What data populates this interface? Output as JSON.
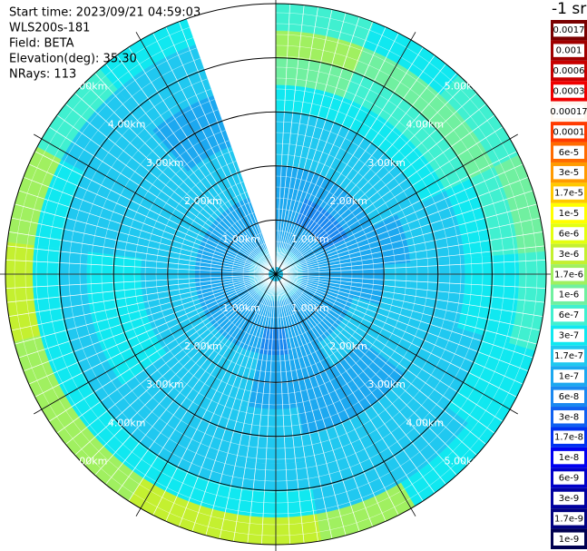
{
  "chart_data": {
    "type": "ppi",
    "header": [
      "Start time: 2023/09/21 04:59:03",
      "WLS200s-181",
      "Field: BETA",
      "Elevation(deg): 35.30",
      "NRays: 113"
    ],
    "range_lim": [
      0,
      5
    ],
    "range_ticks": [
      {
        "value": 1,
        "label": "1.00km"
      },
      {
        "value": 2,
        "label": "2.00km"
      },
      {
        "value": 3,
        "label": "3.00km"
      },
      {
        "value": 4,
        "label": "4.00km"
      },
      {
        "value": 5,
        "label": "5.00km"
      }
    ],
    "azimuth_lim": [
      0,
      340.7
    ],
    "values": [
      [
        1.7e-07,
        1e-07,
        1e-07,
        1e-07,
        1.7e-07,
        1.7e-07,
        3e-07,
        1e-06,
        1.7e-06,
        6e-07
      ],
      [
        1.7e-07,
        1e-07,
        6e-08,
        1e-07,
        1.7e-07,
        1.7e-07,
        3e-07,
        6e-07,
        1e-06,
        3e-07
      ],
      [
        1.7e-07,
        1e-07,
        6e-08,
        1e-07,
        1.7e-07,
        1.7e-07,
        3e-07,
        6e-07,
        1e-06,
        6e-07
      ],
      [
        1.7e-07,
        1e-07,
        1e-07,
        1e-07,
        1e-07,
        1.7e-07,
        1.7e-07,
        3e-07,
        6e-07,
        1e-06
      ],
      [
        1.7e-07,
        1e-07,
        1e-07,
        1e-07,
        1.7e-07,
        1.7e-07,
        1.7e-07,
        3e-07,
        3e-07,
        6e-07
      ],
      [
        1.7e-07,
        1e-07,
        1e-07,
        1.7e-07,
        1.7e-07,
        1.7e-07,
        1.7e-07,
        1.7e-07,
        3e-07,
        3e-07
      ],
      [
        1.7e-07,
        1e-07,
        1e-07,
        1.7e-07,
        1e-07,
        1e-07,
        1.7e-07,
        1.7e-07,
        1.7e-07,
        3e-07
      ],
      [
        1.7e-07,
        1e-07,
        1e-07,
        1e-07,
        1e-07,
        1e-07,
        1.7e-07,
        1.7e-07,
        1.7e-07,
        1.7e-06
      ],
      [
        1.7e-07,
        1e-07,
        6e-08,
        1e-07,
        1e-07,
        1.7e-07,
        1.7e-07,
        1.7e-07,
        3e-07,
        3e-06
      ],
      [
        1.7e-07,
        1e-07,
        1e-07,
        1.7e-07,
        1.7e-07,
        1.7e-07,
        1.7e-07,
        1.7e-07,
        3e-07,
        3e-06
      ],
      [
        1.7e-07,
        1e-07,
        1e-07,
        1.7e-07,
        1.7e-07,
        1.7e-07,
        1.7e-07,
        1.7e-07,
        3e-07,
        1.7e-06
      ],
      [
        1.7e-07,
        1e-07,
        1e-07,
        1.7e-07,
        1.7e-07,
        3e-07,
        3e-07,
        1.7e-07,
        3e-07,
        1.7e-06
      ],
      [
        1.7e-07,
        1e-07,
        1e-07,
        1.7e-07,
        1.7e-07,
        3e-07,
        3e-07,
        1.7e-07,
        3e-07,
        3e-06
      ],
      [
        1.7e-07,
        1e-07,
        1e-07,
        1.7e-07,
        1.7e-07,
        1.7e-07,
        1.7e-07,
        1.7e-07,
        3e-07,
        1.7e-06
      ],
      [
        1.7e-07,
        1e-07,
        1e-07,
        1.7e-07,
        1.7e-07,
        1.7e-07,
        1.7e-07,
        1.7e-07,
        1.7e-07,
        6e-07
      ],
      [
        1.7e-07,
        1e-07,
        1e-07,
        1.7e-07,
        1.7e-07,
        1e-07,
        1e-07,
        1.7e-07,
        1.7e-07,
        3e-07
      ]
    ],
    "colorbar": {
      "title": "-1 sr",
      "levels": [
        0.0017,
        0.001,
        0.0006,
        0.0003,
        0.00017,
        0.0001,
        {
          "value": 6e-05,
          "label": "6e-5"
        },
        {
          "value": 3e-05,
          "label": "3e-5"
        },
        {
          "value": 1.7e-05,
          "label": "1.7e-5"
        },
        {
          "value": 1e-05,
          "label": "1e-5"
        },
        {
          "value": 6e-06,
          "label": "6e-6"
        },
        {
          "value": 3e-06,
          "label": "3e-6"
        },
        {
          "value": 1.7e-06,
          "label": "1.7e-6"
        },
        {
          "value": 1e-06,
          "label": "1e-6"
        },
        {
          "value": 6e-07,
          "label": "6e-7"
        },
        {
          "value": 3e-07,
          "label": "3e-7"
        },
        {
          "value": 1.7e-07,
          "label": "1.7e-7"
        },
        {
          "value": 1e-07,
          "label": "1e-7"
        },
        {
          "value": 6e-08,
          "label": "6e-8"
        },
        {
          "value": 3e-08,
          "label": "3e-8"
        },
        {
          "value": 1.7e-08,
          "label": "1.7e-8"
        },
        {
          "value": 1e-08,
          "label": "1e-8"
        },
        {
          "value": 6e-09,
          "label": "6e-9"
        },
        {
          "value": 3e-09,
          "label": "3e-9"
        },
        {
          "value": 1.7e-09,
          "label": "1.7e-9"
        },
        {
          "value": 1e-09,
          "label": "1e-9"
        }
      ],
      "colors": [
        "#7a0000",
        "#a00000",
        "#c80000",
        "#f00000",
        "#fff6ee",
        "#ff3a00",
        "#ff6a00",
        "#ff9a00",
        "#ffc800",
        "#ffff00",
        "#e4ff10",
        "#c4f030",
        "#a0f060",
        "#70f0a0",
        "#40f0d0",
        "#10e8f0",
        "#20c8f0",
        "#1ca8f0",
        "#1a88f0",
        "#1060f0",
        "#0030f0",
        "#0000f0",
        "#0000c8",
        "#0000a0",
        "#000080",
        "#000050"
      ]
    }
  }
}
